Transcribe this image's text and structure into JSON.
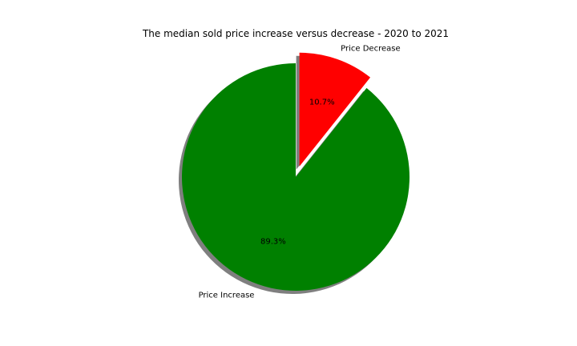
{
  "chart_data": {
    "type": "pie",
    "title": "The median sold price increase versus decrease - 2020 to 2021",
    "slices": [
      {
        "label": "Price Decrease",
        "value": 10.7,
        "pct_label": "10.7%",
        "color": "#ff0000",
        "exploded": true
      },
      {
        "label": "Price Increase",
        "value": 89.3,
        "pct_label": "89.3%",
        "color": "#008000",
        "exploded": false
      }
    ],
    "start_angle": "90 degrees (top), clockwise",
    "shadow": true
  }
}
